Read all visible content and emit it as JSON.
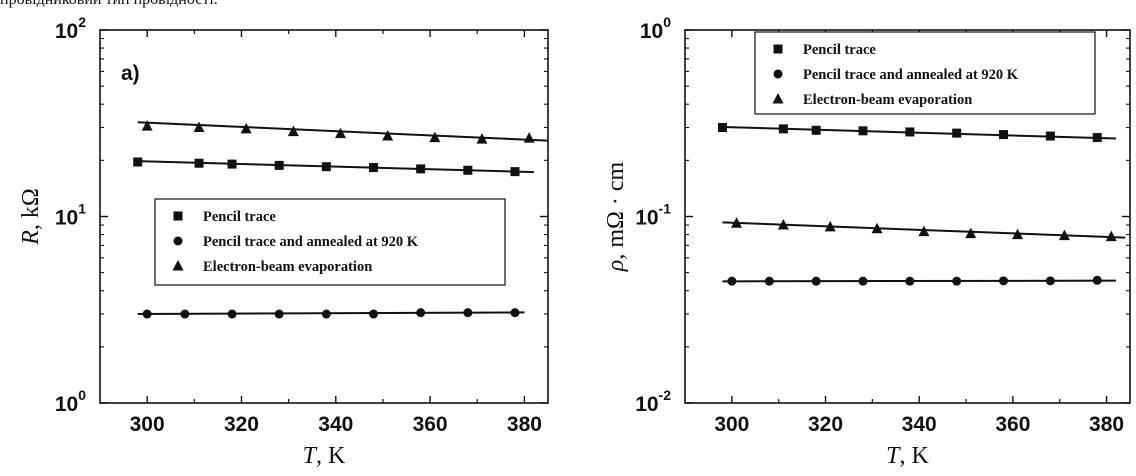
{
  "caption": "провідниковий тип провідності.",
  "chart_data": [
    {
      "type": "scatter",
      "panel_label": "a)",
      "xlabel_sym": "T",
      "xlabel_unit": ", K",
      "ylabel_sym": "R",
      "ylabel_unit": ", kΩ",
      "xlim": [
        290,
        385
      ],
      "ylim": [
        1,
        100
      ],
      "y_scale": "log",
      "x_ticks": [
        "300",
        "320",
        "340",
        "360",
        "380"
      ],
      "y_ticks": [
        {
          "base": "10",
          "exp": "0"
        },
        {
          "base": "10",
          "exp": "1"
        },
        {
          "base": "10",
          "exp": "2"
        }
      ],
      "legend_position": "center-left",
      "series": [
        {
          "name": "Pencil trace",
          "marker": "square",
          "x": [
            298,
            311,
            318,
            328,
            338,
            348,
            358,
            368,
            378
          ],
          "y": [
            19.6,
            19.3,
            19.1,
            18.8,
            18.5,
            18.3,
            18.0,
            17.7,
            17.4
          ],
          "fit": [
            [
              298,
              19.8
            ],
            [
              382,
              17.3
            ]
          ]
        },
        {
          "name": "Pencil trace and annealed at 920 K",
          "marker": "circle",
          "x": [
            300,
            308,
            318,
            328,
            338,
            348,
            358,
            368,
            378
          ],
          "y": [
            3.0,
            3.0,
            3.0,
            3.0,
            3.0,
            3.0,
            3.05,
            3.05,
            3.05
          ],
          "fit": [
            [
              298,
              3.0
            ],
            [
              380,
              3.06
            ]
          ]
        },
        {
          "name": "Electron-beam evaporation",
          "marker": "triangle",
          "x": [
            300,
            311,
            321,
            331,
            341,
            351,
            361,
            371,
            381
          ],
          "y": [
            30.5,
            30.0,
            29.5,
            28.5,
            27.8,
            27.0,
            26.5,
            26.0,
            26.3
          ],
          "fit": [
            [
              298,
              32.0
            ],
            [
              385,
              25.5
            ]
          ]
        }
      ]
    },
    {
      "type": "scatter",
      "panel_label": "",
      "xlabel_sym": "T",
      "xlabel_unit": ", K",
      "ylabel_sym": "ρ",
      "ylabel_unit": ", mΩ · cm",
      "xlim": [
        290,
        385
      ],
      "ylim": [
        0.01,
        1
      ],
      "y_scale": "log",
      "x_ticks": [
        "300",
        "320",
        "340",
        "360",
        "380"
      ],
      "y_ticks": [
        {
          "base": "10",
          "exp": "-2"
        },
        {
          "base": "10",
          "exp": "-1"
        },
        {
          "base": "10",
          "exp": "0"
        }
      ],
      "legend_position": "top-left",
      "series": [
        {
          "name": "Pencil trace",
          "marker": "square",
          "x": [
            298,
            311,
            318,
            328,
            338,
            348,
            358,
            368,
            378
          ],
          "y": [
            0.3,
            0.295,
            0.29,
            0.288,
            0.284,
            0.28,
            0.275,
            0.27,
            0.265
          ],
          "fit": [
            [
              298,
              0.302
            ],
            [
              382,
              0.262
            ]
          ]
        },
        {
          "name": "Pencil trace and annealed at 920 K",
          "marker": "circle",
          "x": [
            300,
            308,
            318,
            328,
            338,
            348,
            358,
            368,
            378
          ],
          "y": [
            0.045,
            0.045,
            0.045,
            0.045,
            0.045,
            0.045,
            0.0452,
            0.0452,
            0.0455
          ],
          "fit": [
            [
              298,
              0.0449
            ],
            [
              382,
              0.0453
            ]
          ]
        },
        {
          "name": "Electron-beam evaporation",
          "marker": "triangle",
          "x": [
            301,
            311,
            321,
            331,
            341,
            351,
            361,
            371,
            381
          ],
          "y": [
            0.092,
            0.09,
            0.088,
            0.086,
            0.083,
            0.081,
            0.08,
            0.079,
            0.078
          ],
          "fit": [
            [
              298,
              0.093
            ],
            [
              384,
              0.077
            ]
          ]
        }
      ]
    }
  ]
}
